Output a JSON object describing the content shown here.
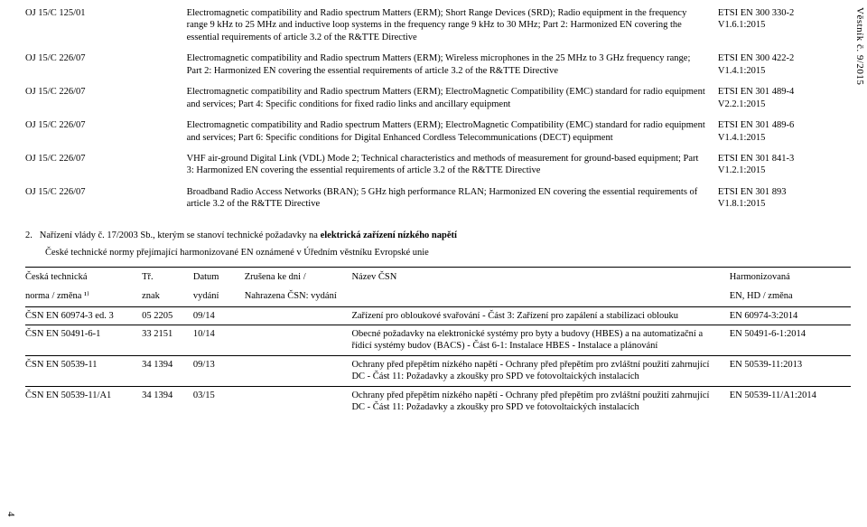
{
  "sideLabel": "Věstník č. 9/2015",
  "pageNumber": "4",
  "topRows": [
    {
      "ref": "OJ 15/C 125/01",
      "desc": "Electromagnetic compatibility and Radio spectrum Matters (ERM); Short Range Devices (SRD); Radio equipment in the frequency range 9 kHz to 25 MHz and inductive loop systems in the frequency range 9 kHz to 30 MHz; Part 2: Harmonized EN covering the essential requirements of article 3.2 of the R&TTE Directive",
      "std1": "ETSI EN 300 330-2",
      "std2": "V1.6.1:2015"
    },
    {
      "ref": "OJ 15/C 226/07",
      "desc": "Electromagnetic compatibility and Radio spectrum Matters (ERM); Wireless microphones in the 25 MHz to 3 GHz frequency range; Part 2: Harmonized EN covering the essential requirements of article 3.2 of the R&TTE Directive",
      "std1": "ETSI EN 300 422-2",
      "std2": "V1.4.1:2015"
    },
    {
      "ref": "OJ 15/C 226/07",
      "desc": "Electromagnetic compatibility and Radio spectrum Matters (ERM); ElectroMagnetic Compatibility (EMC) standard for radio equipment and services; Part 4: Specific conditions for fixed radio links and ancillary equipment",
      "std1": "ETSI EN 301 489-4",
      "std2": "V2.2.1:2015"
    },
    {
      "ref": "OJ 15/C 226/07",
      "desc": "Electromagnetic compatibility and Radio spectrum Matters (ERM); ElectroMagnetic Compatibility (EMC) standard for radio equipment and services; Part 6: Specific conditions for Digital Enhanced Cordless Telecommunications (DECT) equipment",
      "std1": "ETSI EN 301 489-6",
      "std2": "V1.4.1:2015"
    },
    {
      "ref": "OJ 15/C 226/07",
      "desc": "VHF air-ground Digital Link (VDL) Mode 2; Technical characteristics and methods of measurement for ground-based equipment; Part 3: Harmonized EN covering the essential requirements of article 3.2 of the R&TTE Directive",
      "std1": "ETSI EN 301 841-3",
      "std2": "V1.2.1:2015"
    },
    {
      "ref": "OJ 15/C 226/07",
      "desc": "Broadband Radio Access Networks (BRAN); 5 GHz high performance RLAN; Harmonized EN covering the essential requirements of article 3.2 of the R&TTE Directive",
      "std1": "ETSI EN 301 893",
      "std2": "V1.8.1:2015"
    }
  ],
  "section2": {
    "prefix": "2.",
    "title": "Nařízení vlády č. 17/2003 Sb., kterým se stanoví technické požadavky na ",
    "bold": "elektrická zařízení nízkého napětí",
    "sub": "České technické normy přejímající harmonizované EN oznámené v Úředním věstníku Evropské unie"
  },
  "lowerHead": {
    "c1a": "Česká technická",
    "c1b": "norma / změna ¹⁾",
    "c2a": "Tř.",
    "c2b": "znak",
    "c3a": "Datum",
    "c3b": "vydání",
    "c4a": "Zrušena ke dni /",
    "c4b": "Nahrazena ČSN: vydání",
    "c5": "Název ČSN",
    "c6a": "Harmonizovaná",
    "c6b": "EN, HD / změna"
  },
  "lowerRows": [
    {
      "c1": "ČSN EN 60974-3 ed. 3",
      "c2": "05 2205",
      "c3": "09/14",
      "c4": "",
      "c5": "Zařízení pro obloukové svařování - Část 3: Zařízení pro zapálení a stabilizaci oblouku",
      "c6": "EN 60974-3:2014"
    },
    {
      "c1": "ČSN EN 50491-6-1",
      "c2": "33 2151",
      "c3": "10/14",
      "c4": "",
      "c5": "Obecné požadavky na elektronické systémy pro byty a budovy (HBES) a na automatizační a řídicí systémy budov (BACS) - Část 6-1: Instalace HBES - Instalace a plánování",
      "c6": "EN 50491-6-1:2014"
    },
    {
      "c1": "ČSN EN 50539-11",
      "c2": "34 1394",
      "c3": "09/13",
      "c4": "",
      "c5": "Ochrany před přepětím nízkého napětí - Ochrany před přepětím pro zvláštní použití zahrnující DC - Část 11: Požadavky a zkoušky pro SPD ve fotovoltaických instalacích",
      "c6": "EN 50539-11:2013"
    },
    {
      "c1": "ČSN EN 50539-11/A1",
      "c2": "34 1394",
      "c3": "03/15",
      "c4": "",
      "c5": "Ochrany před přepětím nízkého napětí - Ochrany před přepětím pro zvláštní použití zahrnující DC - Část 11: Požadavky a zkoušky pro SPD ve fotovoltaických instalacích",
      "c6": "EN 50539-11/A1:2014"
    }
  ]
}
